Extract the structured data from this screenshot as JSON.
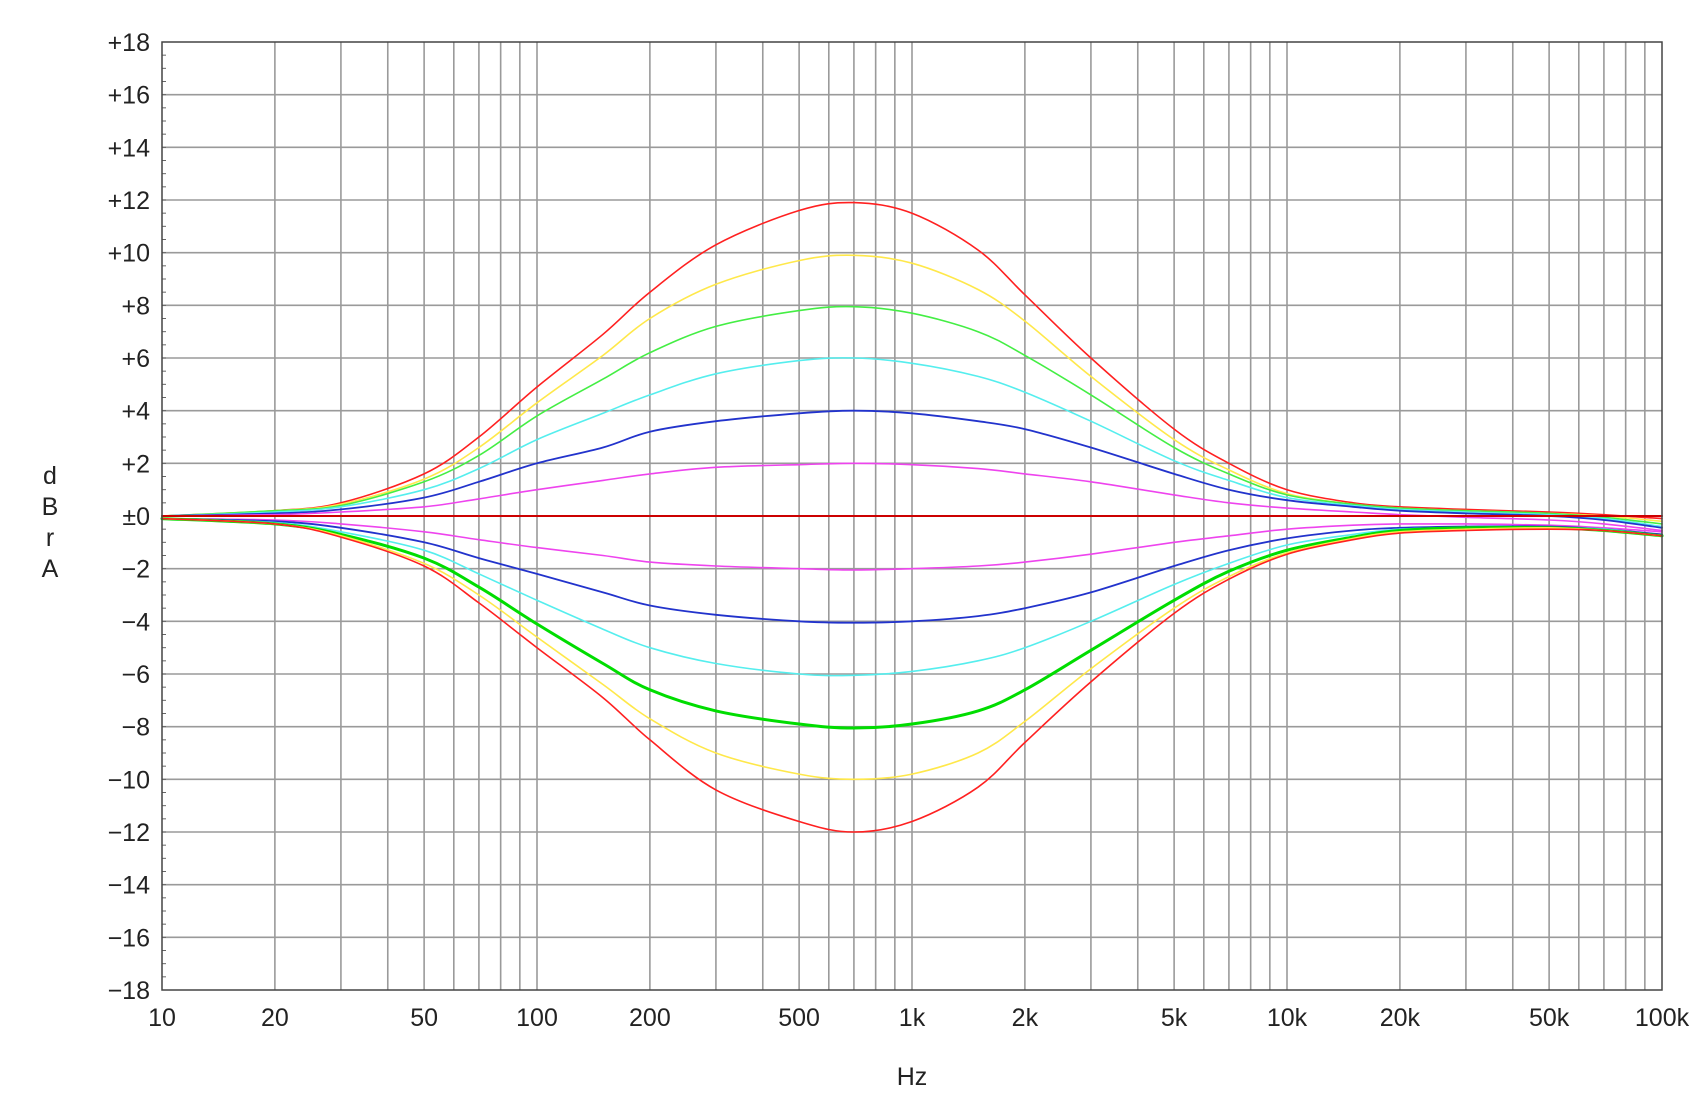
{
  "chart_data": {
    "type": "line",
    "xlabel": "Hz",
    "ylabel": [
      "d",
      "B",
      "r",
      "A"
    ],
    "x_scale": "log",
    "xlim": [
      10,
      100000
    ],
    "ylim": [
      -18,
      18
    ],
    "grid": true,
    "legend": "none",
    "y_ticks": [
      {
        "value": 18,
        "label": "+18"
      },
      {
        "value": 16,
        "label": "+16"
      },
      {
        "value": 14,
        "label": "+14"
      },
      {
        "value": 12,
        "label": "+12"
      },
      {
        "value": 10,
        "label": "+10"
      },
      {
        "value": 8,
        "label": "+8"
      },
      {
        "value": 6,
        "label": "+6"
      },
      {
        "value": 4,
        "label": "+4"
      },
      {
        "value": 2,
        "label": "+2"
      },
      {
        "value": 0,
        "label": "±0"
      },
      {
        "value": -2,
        "label": "−2"
      },
      {
        "value": -4,
        "label": "−4"
      },
      {
        "value": -6,
        "label": "−6"
      },
      {
        "value": -8,
        "label": "−8"
      },
      {
        "value": -10,
        "label": "−10"
      },
      {
        "value": -12,
        "label": "−12"
      },
      {
        "value": -14,
        "label": "−14"
      },
      {
        "value": -16,
        "label": "−16"
      },
      {
        "value": -18,
        "label": "−18"
      }
    ],
    "x_ticks": [
      {
        "value": 10,
        "label": "10"
      },
      {
        "value": 20,
        "label": "20"
      },
      {
        "value": 50,
        "label": "50"
      },
      {
        "value": 100,
        "label": "100"
      },
      {
        "value": 200,
        "label": "200"
      },
      {
        "value": 500,
        "label": "500"
      },
      {
        "value": 1000,
        "label": "1k"
      },
      {
        "value": 2000,
        "label": "2k"
      },
      {
        "value": 5000,
        "label": "5k"
      },
      {
        "value": 10000,
        "label": "10k"
      },
      {
        "value": 20000,
        "label": "20k"
      },
      {
        "value": 50000,
        "label": "50k"
      },
      {
        "value": 100000,
        "label": "100k"
      }
    ],
    "x": [
      10,
      20,
      30,
      50,
      70,
      100,
      150,
      200,
      300,
      500,
      700,
      1000,
      1500,
      2000,
      3000,
      5000,
      7000,
      10000,
      15000,
      20000,
      30000,
      50000,
      70000,
      100000
    ],
    "series": [
      {
        "color": "#ff2020",
        "width": 1.6,
        "values": [
          0,
          0.2,
          0.5,
          1.6,
          3.0,
          4.9,
          6.9,
          8.5,
          10.3,
          11.6,
          11.9,
          11.5,
          10.1,
          8.4,
          6.0,
          3.3,
          2.0,
          1.0,
          0.5,
          0.35,
          0.25,
          0.15,
          0.05,
          -0.1
        ]
      },
      {
        "color": "#ffe84a",
        "width": 1.6,
        "values": [
          0,
          0.2,
          0.45,
          1.4,
          2.6,
          4.3,
          6.1,
          7.5,
          8.8,
          9.7,
          9.9,
          9.6,
          8.6,
          7.4,
          5.3,
          2.9,
          1.75,
          0.85,
          0.45,
          0.3,
          0.2,
          0.1,
          0,
          -0.2
        ]
      },
      {
        "color": "#44ee44",
        "width": 1.6,
        "values": [
          0,
          0.2,
          0.4,
          1.3,
          2.3,
          3.8,
          5.2,
          6.2,
          7.2,
          7.8,
          7.95,
          7.7,
          7.0,
          6.1,
          4.6,
          2.6,
          1.6,
          0.8,
          0.45,
          0.3,
          0.2,
          0.1,
          -0.05,
          -0.3
        ]
      },
      {
        "color": "#55eeee",
        "width": 1.6,
        "values": [
          0,
          0.15,
          0.35,
          1.0,
          1.8,
          2.9,
          3.9,
          4.6,
          5.4,
          5.9,
          6.0,
          5.8,
          5.3,
          4.7,
          3.6,
          2.1,
          1.35,
          0.7,
          0.4,
          0.25,
          0.15,
          0.05,
          -0.1,
          -0.4
        ]
      },
      {
        "color": "#2233cc",
        "width": 1.8,
        "values": [
          0,
          0.1,
          0.25,
          0.7,
          1.3,
          2.0,
          2.6,
          3.2,
          3.6,
          3.9,
          4.0,
          3.9,
          3.6,
          3.3,
          2.6,
          1.6,
          1.0,
          0.6,
          0.35,
          0.2,
          0.1,
          0.0,
          -0.15,
          -0.45
        ]
      },
      {
        "color": "#ee44ee",
        "width": 1.6,
        "values": [
          0,
          0.05,
          0.15,
          0.35,
          0.65,
          1.0,
          1.35,
          1.6,
          1.85,
          1.95,
          2.0,
          1.95,
          1.8,
          1.6,
          1.3,
          0.8,
          0.5,
          0.3,
          0.15,
          0.05,
          -0.05,
          -0.15,
          -0.3,
          -0.55
        ]
      },
      {
        "color": "#cc0000",
        "width": 2.0,
        "values": [
          0,
          0,
          0,
          0,
          0,
          0,
          0,
          0,
          0,
          0,
          0,
          0,
          0,
          0,
          0,
          0,
          0,
          0,
          0,
          0,
          0,
          0,
          0,
          0
        ]
      },
      {
        "color": "#ee44ee",
        "width": 1.6,
        "values": [
          -0.1,
          -0.15,
          -0.3,
          -0.6,
          -0.9,
          -1.2,
          -1.5,
          -1.75,
          -1.9,
          -2.0,
          -2.05,
          -2.0,
          -1.9,
          -1.75,
          -1.45,
          -1.0,
          -0.75,
          -0.5,
          -0.35,
          -0.3,
          -0.3,
          -0.35,
          -0.45,
          -0.6
        ]
      },
      {
        "color": "#2233cc",
        "width": 1.8,
        "values": [
          -0.1,
          -0.2,
          -0.45,
          -1.0,
          -1.6,
          -2.2,
          -2.9,
          -3.4,
          -3.75,
          -4.0,
          -4.05,
          -4.0,
          -3.8,
          -3.5,
          -2.9,
          -1.9,
          -1.3,
          -0.85,
          -0.55,
          -0.45,
          -0.4,
          -0.4,
          -0.5,
          -0.7
        ]
      },
      {
        "color": "#55eeee",
        "width": 1.6,
        "values": [
          -0.1,
          -0.25,
          -0.6,
          -1.3,
          -2.2,
          -3.2,
          -4.3,
          -5.0,
          -5.6,
          -6.0,
          -6.05,
          -5.9,
          -5.5,
          -5.0,
          -4.0,
          -2.6,
          -1.8,
          -1.1,
          -0.7,
          -0.5,
          -0.45,
          -0.45,
          -0.5,
          -0.75
        ]
      },
      {
        "color": "#00dd00",
        "width": 3.0,
        "values": [
          -0.1,
          -0.3,
          -0.7,
          -1.6,
          -2.7,
          -4.1,
          -5.6,
          -6.6,
          -7.4,
          -7.9,
          -8.05,
          -7.9,
          -7.4,
          -6.6,
          -5.1,
          -3.2,
          -2.1,
          -1.3,
          -0.8,
          -0.55,
          -0.45,
          -0.45,
          -0.55,
          -0.75
        ]
      },
      {
        "color": "#ffe84a",
        "width": 1.6,
        "values": [
          -0.1,
          -0.3,
          -0.75,
          -1.8,
          -3.0,
          -4.6,
          -6.4,
          -7.7,
          -9.0,
          -9.8,
          -10.0,
          -9.8,
          -9.0,
          -7.8,
          -5.8,
          -3.5,
          -2.3,
          -1.4,
          -0.85,
          -0.6,
          -0.5,
          -0.45,
          -0.55,
          -0.75
        ]
      },
      {
        "color": "#ff2020",
        "width": 1.6,
        "values": [
          -0.1,
          -0.3,
          -0.8,
          -1.9,
          -3.3,
          -5.0,
          -6.9,
          -8.5,
          -10.4,
          -11.6,
          -12.0,
          -11.6,
          -10.3,
          -8.6,
          -6.3,
          -3.7,
          -2.4,
          -1.45,
          -0.9,
          -0.65,
          -0.55,
          -0.5,
          -0.55,
          -0.75
        ]
      }
    ]
  }
}
